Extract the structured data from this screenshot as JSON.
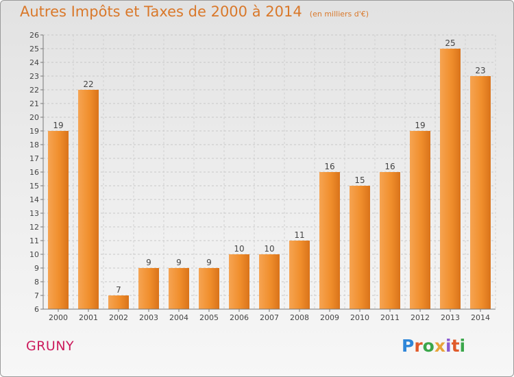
{
  "chart_data": {
    "type": "bar",
    "title": "Autres Impôts et Taxes de 2000 à 2014",
    "unit_label": "(en milliers d'€)",
    "categories": [
      "2000",
      "2001",
      "2002",
      "2003",
      "2004",
      "2005",
      "2006",
      "2007",
      "2008",
      "2009",
      "2010",
      "2011",
      "2012",
      "2013",
      "2014"
    ],
    "values": [
      19,
      22,
      7,
      9,
      9,
      9,
      10,
      10,
      11,
      16,
      15,
      16,
      19,
      25,
      23
    ],
    "ylim": [
      6,
      26
    ],
    "yticks": [
      6,
      7,
      8,
      9,
      10,
      11,
      12,
      13,
      14,
      15,
      16,
      17,
      18,
      19,
      20,
      21,
      22,
      23,
      24,
      25,
      26
    ],
    "grid": true,
    "bar_color": "#f0902e"
  },
  "footer": {
    "place": "GRUNY",
    "logo": [
      "P",
      "r",
      "o",
      "x",
      "i",
      "t",
      "i"
    ]
  },
  "colors": {
    "title": "#d9782a",
    "place": "#cc1a5c"
  }
}
